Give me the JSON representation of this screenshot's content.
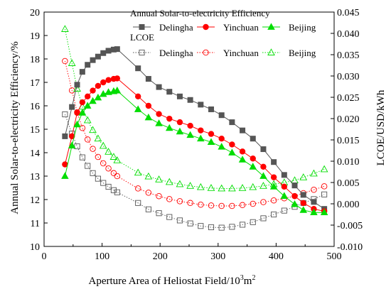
{
  "chart_data": {
    "type": "line",
    "xlabel_main": "Aperture Area of Heliostat Field/10",
    "xlabel_sup": "3",
    "xlabel_tail": "m",
    "xlabel_sup2": "2",
    "ylabel_left": "Annual Solar-to-electricity Efficiency/%",
    "ylabel_right": "LCOE/USD/kWh",
    "xlim": [
      0,
      500
    ],
    "ylim_left": [
      10,
      20
    ],
    "ylim_right": [
      -0.01,
      0.045
    ],
    "x_ticks": [
      "0",
      "100",
      "200",
      "300",
      "400",
      "500"
    ],
    "y_left_ticks": [
      "10",
      "11",
      "12",
      "13",
      "14",
      "15",
      "16",
      "17",
      "18",
      "19",
      "20"
    ],
    "y_right_ticks": [
      "-0.010",
      "-0.005",
      "0.000",
      "0.005",
      "0.010",
      "0.015",
      "0.020",
      "0.025",
      "0.030",
      "0.035",
      "0.040",
      "0.045"
    ],
    "legend": {
      "efficiency_heading": "Annual Solar-to-electricity Efficiency",
      "lcoe_heading": "LCOE",
      "names": [
        "Delingha",
        "Yinchuan",
        "Beijing"
      ]
    },
    "colors": {
      "Delingha": "#555555",
      "Yinchuan": "#ff0000",
      "Beijing": "#00dd00"
    },
    "x": [
      36,
      48,
      57,
      66,
      75,
      84,
      93,
      102,
      111,
      120,
      126,
      162,
      180,
      198,
      216,
      234,
      252,
      270,
      288,
      306,
      324,
      342,
      360,
      378,
      396,
      414,
      432,
      447,
      465,
      483
    ],
    "efficiency_series": [
      {
        "name": "Delingha",
        "values": [
          14.7,
          15.95,
          16.9,
          17.45,
          17.75,
          17.95,
          18.1,
          18.25,
          18.35,
          18.4,
          18.42,
          17.6,
          17.15,
          16.8,
          16.6,
          16.4,
          16.25,
          16.05,
          15.85,
          15.6,
          15.3,
          14.95,
          14.6,
          14.15,
          13.6,
          13.05,
          12.6,
          12.2,
          11.9,
          11.6
        ]
      },
      {
        "name": "Yinchuan",
        "values": [
          13.5,
          14.7,
          15.7,
          16.15,
          16.4,
          16.65,
          16.85,
          17.0,
          17.1,
          17.15,
          17.17,
          16.4,
          16.0,
          15.65,
          15.45,
          15.3,
          15.15,
          14.95,
          14.8,
          14.6,
          14.35,
          14.05,
          13.75,
          13.4,
          12.95,
          12.55,
          12.15,
          11.85,
          11.6,
          11.5
        ]
      },
      {
        "name": "Beijing",
        "values": [
          13.0,
          14.3,
          15.2,
          15.7,
          16.0,
          16.2,
          16.35,
          16.5,
          16.58,
          16.62,
          16.65,
          15.85,
          15.5,
          15.25,
          15.05,
          14.9,
          14.75,
          14.6,
          14.45,
          14.25,
          14.0,
          13.7,
          13.4,
          13.0,
          12.55,
          12.15,
          11.8,
          11.55,
          11.45,
          11.45
        ]
      }
    ],
    "lcoe_series": [
      {
        "name": "Delingha",
        "values": [
          0.021,
          0.0165,
          0.0135,
          0.0109,
          0.0089,
          0.0072,
          0.0059,
          0.0049,
          0.004,
          0.0032,
          0.0027,
          0.0002,
          -0.0013,
          -0.0022,
          -0.0031,
          -0.0039,
          -0.0046,
          -0.0052,
          -0.0055,
          -0.0056,
          -0.0054,
          -0.0049,
          -0.0043,
          -0.0034,
          -0.0025,
          -0.0016,
          -0.0007,
          0.0002,
          0.0011,
          0.0022
        ]
      },
      {
        "name": "Yinchuan",
        "values": [
          0.0335,
          0.0266,
          0.0215,
          0.0178,
          0.0151,
          0.0129,
          0.011,
          0.0095,
          0.0083,
          0.0072,
          0.0065,
          0.0036,
          0.0026,
          0.0018,
          0.0011,
          0.0006,
          0.0002,
          -0.0002,
          -0.0004,
          -0.0005,
          -0.0005,
          -0.0003,
          0.0,
          0.0004,
          0.0008,
          0.0013,
          0.0018,
          0.0025,
          0.0033,
          0.0041
        ]
      },
      {
        "name": "Beijing",
        "values": [
          0.041,
          0.033,
          0.027,
          0.0228,
          0.0196,
          0.0173,
          0.0153,
          0.0136,
          0.0122,
          0.011,
          0.0102,
          0.0073,
          0.0064,
          0.0057,
          0.0051,
          0.0046,
          0.0042,
          0.0039,
          0.0037,
          0.0036,
          0.0036,
          0.0037,
          0.0039,
          0.0042,
          0.0046,
          0.005,
          0.0055,
          0.0062,
          0.0071,
          0.0081
        ]
      }
    ],
    "grid": false,
    "legend_position": "top-right"
  }
}
